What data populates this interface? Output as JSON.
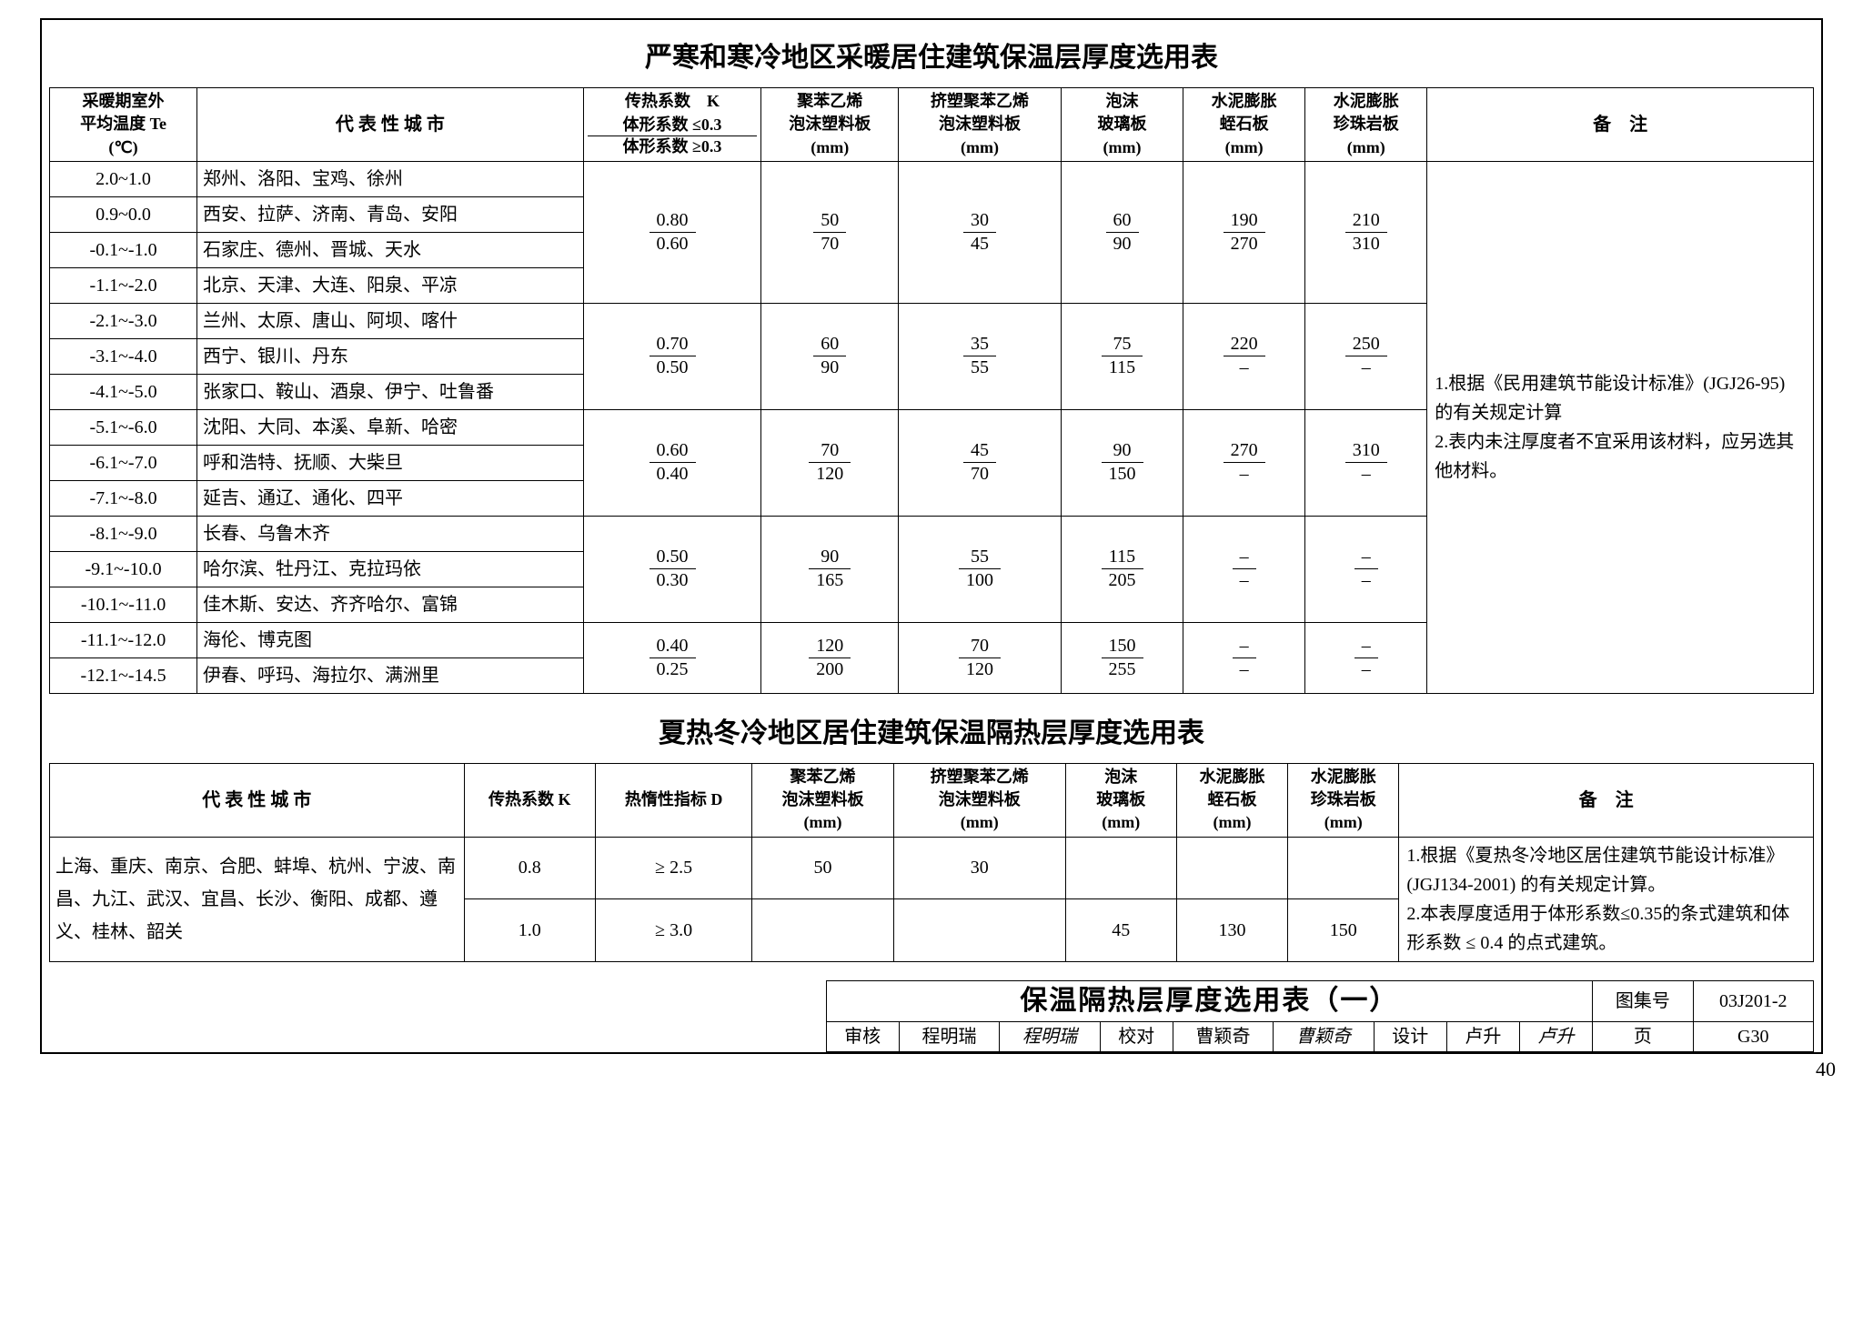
{
  "table1": {
    "title": "严寒和寒冷地区采暖居住建筑保温层厚度选用表",
    "headers": {
      "c1": "采暖期室外\n平均温度 Te\n(℃)",
      "c2": "代 表 性 城 市",
      "c3_line1": "传热系数　K",
      "c3_line2": "体形系数  ≤0.3",
      "c3_line3": "体形系数  ≥0.3",
      "c4": "聚苯乙烯\n泡沫塑料板\n(mm)",
      "c5": "挤塑聚苯乙烯\n泡沫塑料板\n(mm)",
      "c6": "泡沫\n玻璃板\n(mm)",
      "c7": "水泥膨胀\n蛭石板\n(mm)",
      "c8": "水泥膨胀\n珍珠岩板\n(mm)",
      "c9": "备　注"
    },
    "rows": [
      {
        "temp": "2.0~1.0",
        "cities": "郑州、洛阳、宝鸡、徐州"
      },
      {
        "temp": "0.9~0.0",
        "cities": "西安、拉萨、济南、青岛、安阳"
      },
      {
        "temp": "-0.1~-1.0",
        "cities": "石家庄、德州、晋城、天水"
      },
      {
        "temp": "-1.1~-2.0",
        "cities": "北京、天津、大连、阳泉、平凉"
      },
      {
        "temp": "-2.1~-3.0",
        "cities": "兰州、太原、唐山、阿坝、喀什"
      },
      {
        "temp": "-3.1~-4.0",
        "cities": "西宁、银川、丹东"
      },
      {
        "temp": "-4.1~-5.0",
        "cities": "张家口、鞍山、酒泉、伊宁、吐鲁番"
      },
      {
        "temp": "-5.1~-6.0",
        "cities": "沈阳、大同、本溪、阜新、哈密"
      },
      {
        "temp": "-6.1~-7.0",
        "cities": "呼和浩特、抚顺、大柴旦"
      },
      {
        "temp": "-7.1~-8.0",
        "cities": "延吉、通辽、通化、四平"
      },
      {
        "temp": "-8.1~-9.0",
        "cities": "长春、乌鲁木齐"
      },
      {
        "temp": "-9.1~-10.0",
        "cities": "哈尔滨、牡丹江、克拉玛依"
      },
      {
        "temp": "-10.1~-11.0",
        "cities": "佳木斯、安达、齐齐哈尔、富锦"
      },
      {
        "temp": "-11.1~-12.0",
        "cities": "海伦、博克图"
      },
      {
        "temp": "-12.1~-14.5",
        "cities": "伊春、呼玛、海拉尔、满洲里"
      }
    ],
    "groups": [
      {
        "span": 4,
        "k_num": "0.80",
        "k_den": "0.60",
        "c4_num": "50",
        "c4_den": "70",
        "c5_num": "30",
        "c5_den": "45",
        "c6_num": "60",
        "c6_den": "90",
        "c7_num": "190",
        "c7_den": "270",
        "c8_num": "210",
        "c8_den": "310"
      },
      {
        "span": 3,
        "k_num": "0.70",
        "k_den": "0.50",
        "c4_num": "60",
        "c4_den": "90",
        "c5_num": "35",
        "c5_den": "55",
        "c6_num": "75",
        "c6_den": "115",
        "c7_num": "220",
        "c7_den": "–",
        "c8_num": "250",
        "c8_den": "–"
      },
      {
        "span": 3,
        "k_num": "0.60",
        "k_den": "0.40",
        "c4_num": "70",
        "c4_den": "120",
        "c5_num": "45",
        "c5_den": "70",
        "c6_num": "90",
        "c6_den": "150",
        "c7_num": "270",
        "c7_den": "–",
        "c8_num": "310",
        "c8_den": "–"
      },
      {
        "span": 3,
        "k_num": "0.50",
        "k_den": "0.30",
        "c4_num": "90",
        "c4_den": "165",
        "c5_num": "55",
        "c5_den": "100",
        "c6_num": "115",
        "c6_den": "205",
        "c7_num": "–",
        "c7_den": "–",
        "c8_num": "–",
        "c8_den": "–"
      },
      {
        "span": 2,
        "k_num": "0.40",
        "k_den": "0.25",
        "c4_num": "120",
        "c4_den": "200",
        "c5_num": "70",
        "c5_den": "120",
        "c6_num": "150",
        "c6_den": "255",
        "c7_num": "–",
        "c7_den": "–",
        "c8_num": "–",
        "c8_den": "–"
      }
    ],
    "notes": "1.根据《民用建筑节能设计标准》(JGJ26-95) 的有关规定计算\n2.表内未注厚度者不宜采用该材料，应另选其他材料。",
    "col_widths": [
      "145",
      "380",
      "175",
      "135",
      "160",
      "120",
      "120",
      "120",
      "380"
    ]
  },
  "table2": {
    "title": "夏热冬冷地区居住建筑保温隔热层厚度选用表",
    "headers": {
      "c1": "代 表 性 城 市",
      "c2": "传热系数 K",
      "c3": "热惰性指标 D",
      "c4": "聚苯乙烯\n泡沫塑料板\n(mm)",
      "c5": "挤塑聚苯乙烯\n泡沫塑料板\n(mm)",
      "c6": "泡沫\n玻璃板\n(mm)",
      "c7": "水泥膨胀\n蛭石板\n(mm)",
      "c8": "水泥膨胀\n珍珠岩板\n(mm)",
      "c9": "备　注"
    },
    "cities": "上海、重庆、南京、合肥、蚌埠、杭州、宁波、南昌、九江、武汉、宜昌、长沙、衡阳、成都、遵义、桂林、韶关",
    "r1": {
      "k": "0.8",
      "d": "≥ 2.5",
      "c4": "50",
      "c5": "30",
      "c6": "",
      "c7": "",
      "c8": ""
    },
    "r2": {
      "k": "1.0",
      "d": "≥ 3.0",
      "c4": "",
      "c5": "",
      "c6": "45",
      "c7": "130",
      "c8": "150"
    },
    "notes": "1.根据《夏热冬冷地区居住建筑节能设计标准》(JGJ134-2001) 的有关规定计算。\n2.本表厚度适用于体形系数≤0.35的条式建筑和体形系数 ≤ 0.4 的点式建筑。",
    "col_widths": [
      "410",
      "130",
      "155",
      "140",
      "170",
      "110",
      "110",
      "110",
      "410"
    ]
  },
  "footer": {
    "main": "保温隔热层厚度选用表（一）",
    "tuji_label": "图集号",
    "tuji_val": "03J201-2",
    "shenhe_label": "审核",
    "shenhe_name": "程明瑞",
    "shenhe_sig": "程明瑞",
    "jiaodui_label": "校对",
    "jiaodui_name": "曹颖奇",
    "jiaodui_sig": "曹颖奇",
    "sheji_label": "设计",
    "sheji_name": "卢升",
    "sheji_sig": "卢升",
    "page_label": "页",
    "page_val": "G30",
    "outer_page": "40"
  }
}
